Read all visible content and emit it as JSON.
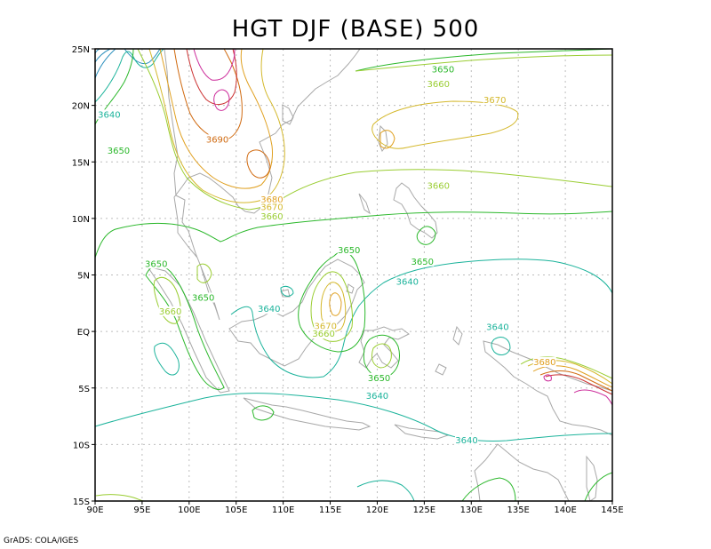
{
  "title": "HGT DJF (BASE) 500",
  "credit": "GrADS: COLA/IGES",
  "lon_labels": [
    "90E",
    "95E",
    "100E",
    "105E",
    "110E",
    "115E",
    "120E",
    "125E",
    "130E",
    "135E",
    "140E",
    "145E"
  ],
  "lat_labels": [
    "25N",
    "20N",
    "15N",
    "10N",
    "5N",
    "EQ",
    "5S",
    "10S",
    "15S"
  ],
  "colors": {
    "c3640": "#1bb39b",
    "c3650": "#2bb82b",
    "c3660": "#9acd32",
    "c3670": "#d4b82c",
    "c3680": "#e0a020",
    "c3690": "#d06a10",
    "c3700": "#cc3333",
    "c3710": "#cc2b9a",
    "c3630": "#2a8fbd",
    "coast": "#a8a8a8",
    "grid": "#bdbdbd"
  },
  "contour_labels": [
    {
      "text": "3650",
      "lon": 127.0,
      "lat": 23.0,
      "color": "c3650"
    },
    {
      "text": "3660",
      "lon": 126.5,
      "lat": 21.7,
      "color": "c3660"
    },
    {
      "text": "3670",
      "lon": 132.5,
      "lat": 20.3,
      "color": "c3670"
    },
    {
      "text": "3640",
      "lon": 91.5,
      "lat": 19.0,
      "color": "c3640"
    },
    {
      "text": "3690",
      "lon": 103.0,
      "lat": 16.8,
      "color": "c3690"
    },
    {
      "text": "3650",
      "lon": 92.5,
      "lat": 15.8,
      "color": "c3650"
    },
    {
      "text": "3660",
      "lon": 126.5,
      "lat": 12.7,
      "color": "c3660"
    },
    {
      "text": "3680",
      "lon": 108.8,
      "lat": 11.5,
      "color": "c3680"
    },
    {
      "text": "3670",
      "lon": 108.8,
      "lat": 10.8,
      "color": "c3670"
    },
    {
      "text": "3660",
      "lon": 108.8,
      "lat": 10.0,
      "color": "c3660"
    },
    {
      "text": "3650",
      "lon": 117.0,
      "lat": 7.0,
      "color": "c3650"
    },
    {
      "text": "3650",
      "lon": 124.8,
      "lat": 6.0,
      "color": "c3650"
    },
    {
      "text": "3650",
      "lon": 96.5,
      "lat": 5.8,
      "color": "c3650"
    },
    {
      "text": "3640",
      "lon": 123.2,
      "lat": 4.2,
      "color": "c3640"
    },
    {
      "text": "3650",
      "lon": 101.5,
      "lat": 2.8,
      "color": "c3650"
    },
    {
      "text": "3640",
      "lon": 108.5,
      "lat": 1.8,
      "color": "c3640"
    },
    {
      "text": "3660",
      "lon": 98.0,
      "lat": 1.6,
      "color": "c3660"
    },
    {
      "text": "3670",
      "lon": 114.5,
      "lat": 0.3,
      "color": "c3670"
    },
    {
      "text": "3660",
      "lon": 114.3,
      "lat": -0.4,
      "color": "c3660"
    },
    {
      "text": "3640",
      "lon": 132.8,
      "lat": 0.2,
      "color": "c3640"
    },
    {
      "text": "3680",
      "lon": 137.8,
      "lat": -2.9,
      "color": "c3680"
    },
    {
      "text": "3650",
      "lon": 120.2,
      "lat": -4.3,
      "color": "c3650"
    },
    {
      "text": "3640",
      "lon": 120.0,
      "lat": -5.9,
      "color": "c3640"
    },
    {
      "text": "3640",
      "lon": 129.5,
      "lat": -9.8,
      "color": "c3640"
    }
  ]
}
